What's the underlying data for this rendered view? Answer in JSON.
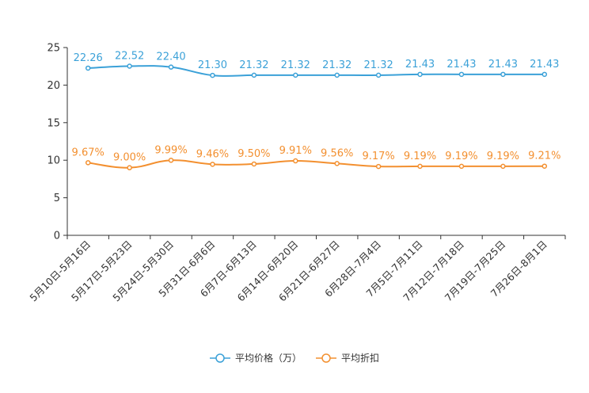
{
  "chart_data": {
    "type": "line",
    "categories": [
      "5月10日-5月16日",
      "5月17日-5月23日",
      "5月24日-5月30日",
      "5月31日-6月6日",
      "6月7日-6月13日",
      "6月14日-6月20日",
      "6月21日-6月27日",
      "6月28日-7月4日",
      "7月5日-7月11日",
      "7月12日-7月18日",
      "7月19日-7月25日",
      "7月26日-8月1日"
    ],
    "series": [
      {
        "name": "平均价格（万）",
        "color": "#3ba1d8",
        "values": [
          22.26,
          22.52,
          22.4,
          21.3,
          21.32,
          21.32,
          21.32,
          21.32,
          21.43,
          21.43,
          21.43,
          21.43
        ],
        "labels": [
          "22.26",
          "22.52",
          "22.40",
          "21.30",
          "21.32",
          "21.32",
          "21.32",
          "21.32",
          "21.43",
          "21.43",
          "21.43",
          "21.43"
        ]
      },
      {
        "name": "平均折扣",
        "color": "#f39030",
        "values": [
          9.67,
          9.0,
          9.99,
          9.46,
          9.5,
          9.91,
          9.56,
          9.17,
          9.19,
          9.19,
          9.19,
          9.21
        ],
        "labels": [
          "9.67%",
          "9.00%",
          "9.99%",
          "9.46%",
          "9.50%",
          "9.91%",
          "9.56%",
          "9.17%",
          "9.19%",
          "9.19%",
          "9.19%",
          "9.21%"
        ]
      }
    ],
    "ylim": [
      0,
      25
    ],
    "yticks": [
      "0",
      "5",
      "10",
      "15",
      "20",
      "25"
    ],
    "legend_position": "bottom-center",
    "grid": false
  }
}
